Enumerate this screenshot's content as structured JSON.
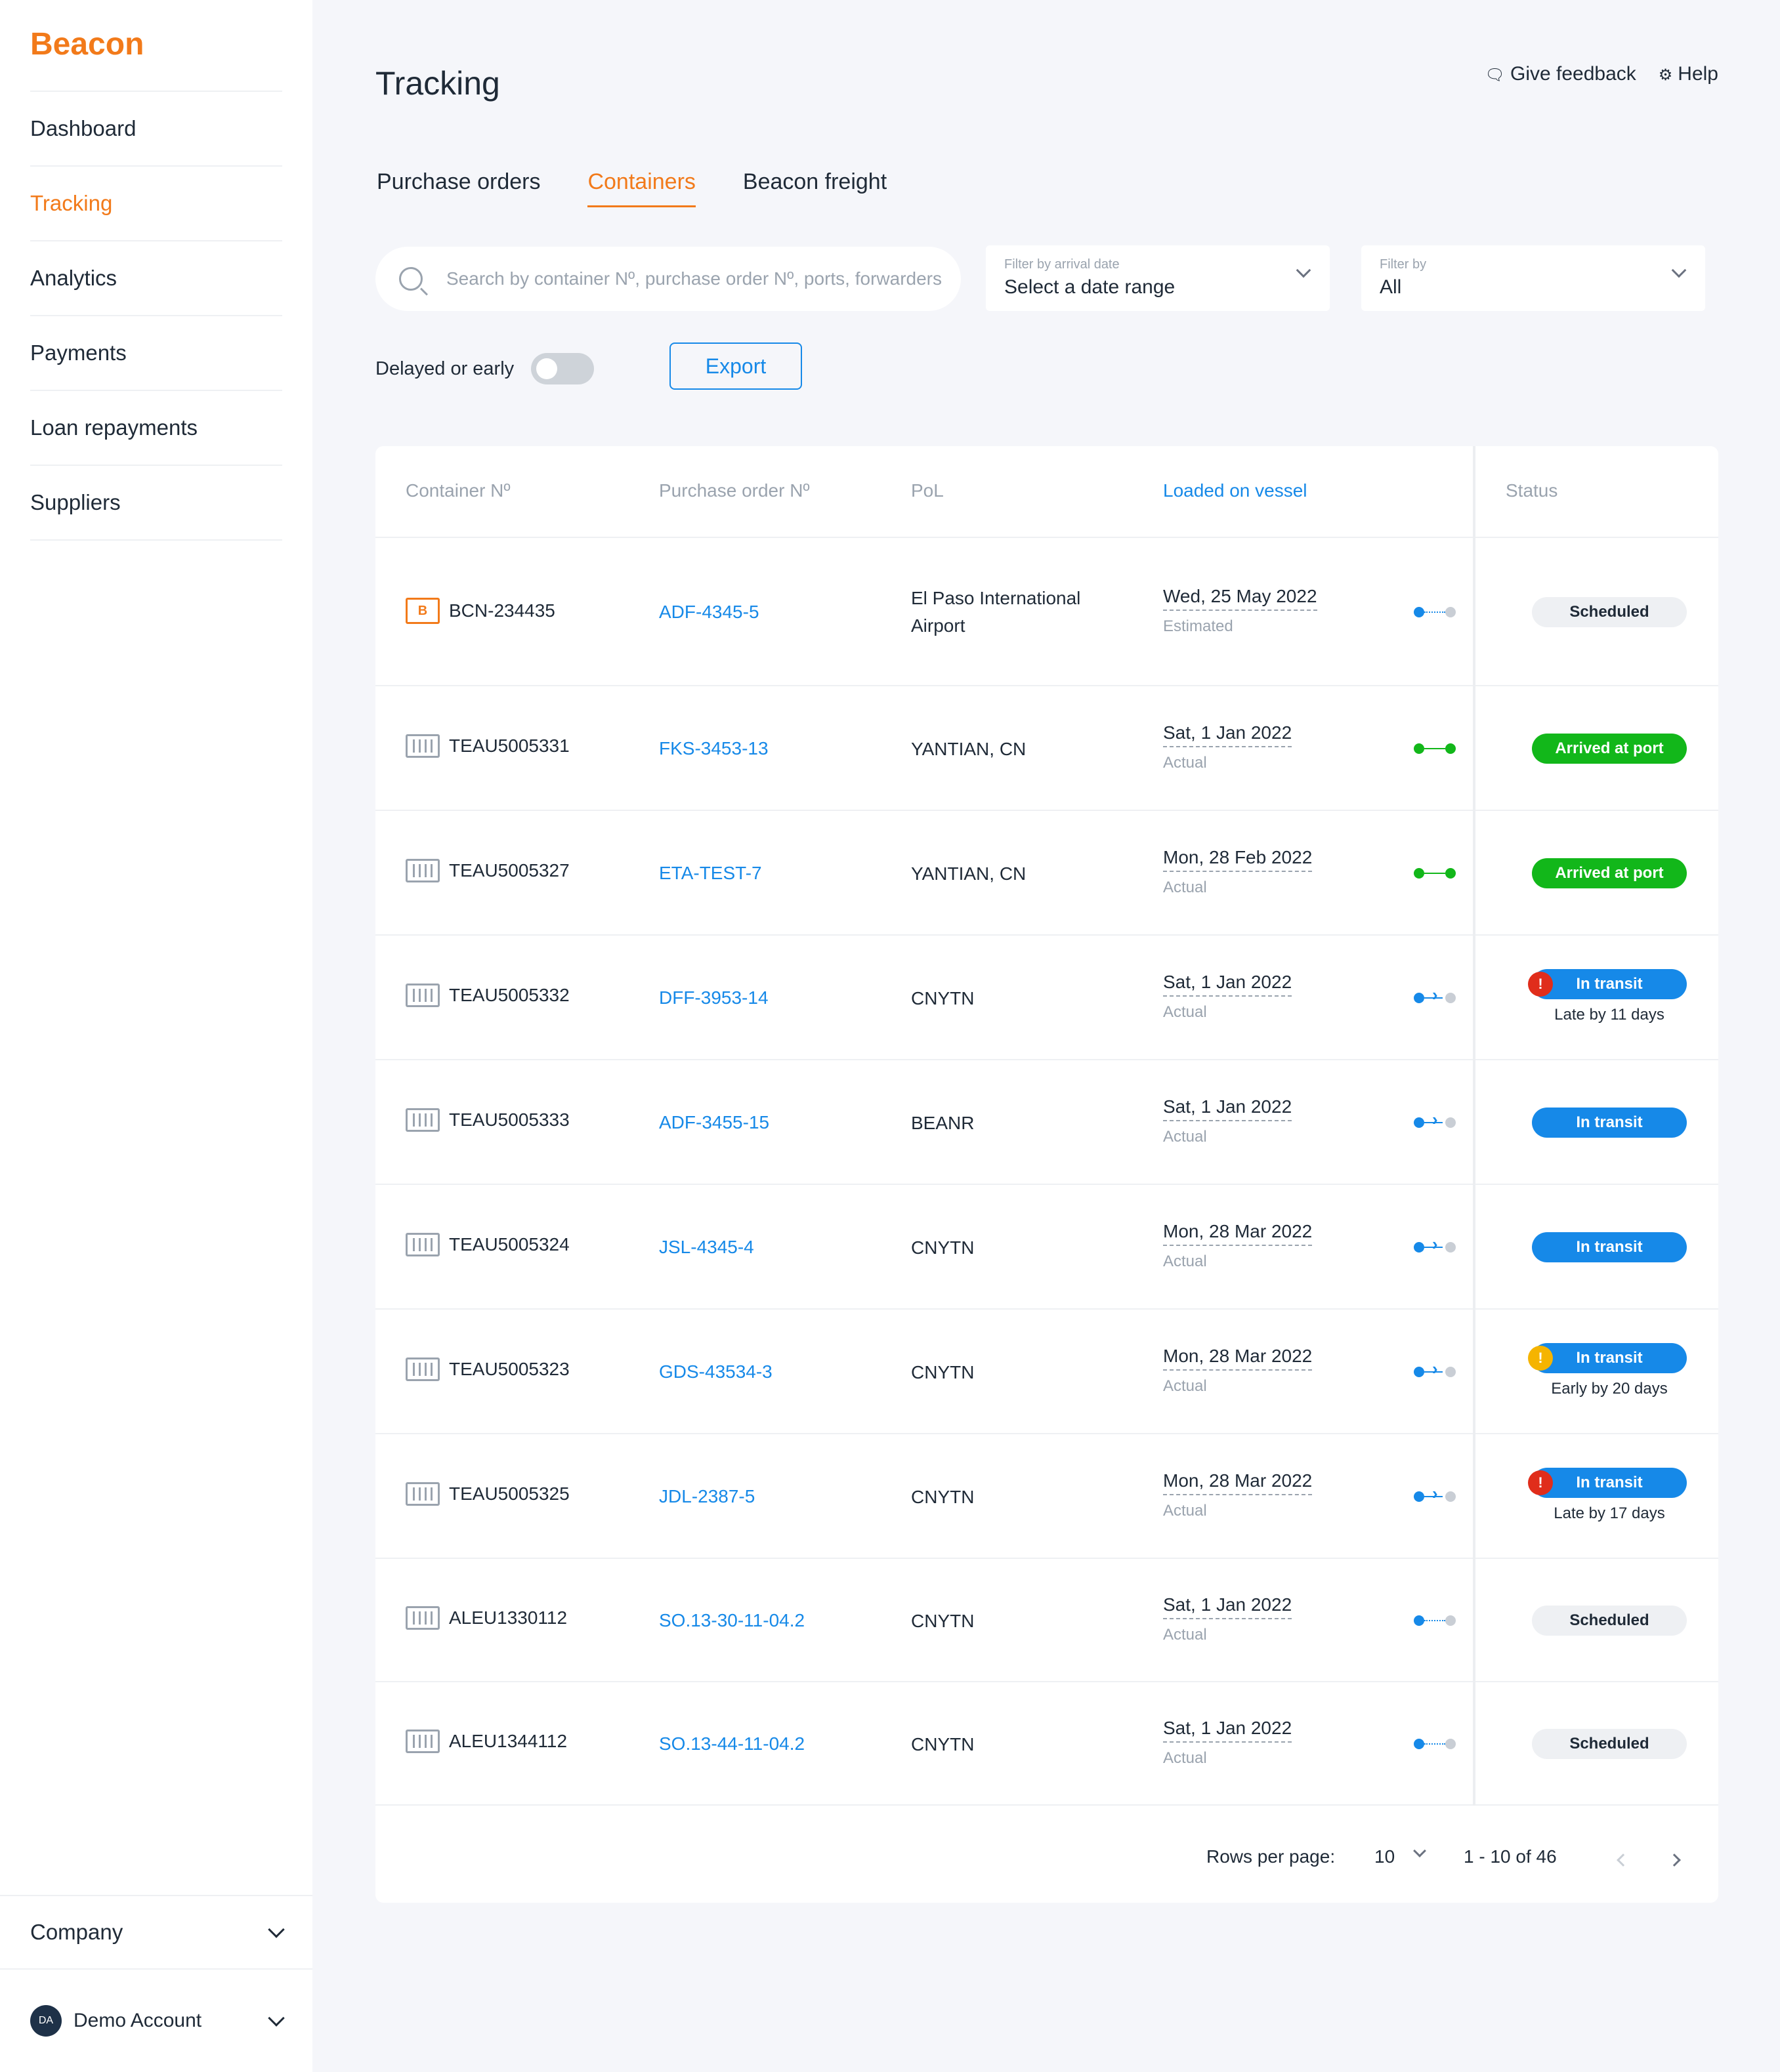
{
  "app": {
    "logo": "Beacon"
  },
  "sidebar": {
    "items": [
      {
        "label": "Dashboard"
      },
      {
        "label": "Tracking",
        "active": true
      },
      {
        "label": "Analytics"
      },
      {
        "label": "Payments"
      },
      {
        "label": "Loan repayments"
      },
      {
        "label": "Suppliers"
      }
    ],
    "company": "Company",
    "account": {
      "initials": "DA",
      "name": "Demo Account"
    }
  },
  "header": {
    "title": "Tracking",
    "feedback": "Give feedback",
    "help": "Help"
  },
  "tabs": [
    {
      "label": "Purchase orders"
    },
    {
      "label": "Containers",
      "active": true
    },
    {
      "label": "Beacon freight"
    }
  ],
  "search": {
    "placeholder": "Search by container Nº, purchase order Nº, ports, forwarders"
  },
  "filters": {
    "arrival": {
      "label": "Filter by arrival date",
      "value": "Select a date range"
    },
    "by": {
      "label": "Filter by",
      "value": "All"
    }
  },
  "delayed_toggle": {
    "label": "Delayed or early",
    "on": false
  },
  "export_label": "Export",
  "table": {
    "headers": {
      "container": "Container Nº",
      "po": "Purchase order Nº",
      "pol": "PoL",
      "loaded": "Loaded on vessel",
      "status": "Status"
    },
    "rows": [
      {
        "container": "BCN-234435",
        "po": "ADF-4345-5",
        "pol": "El Paso International Airport",
        "date": "Wed, 25 May 2022",
        "kind": "Estimated",
        "status": "Scheduled",
        "note": ""
      },
      {
        "container": "TEAU5005331",
        "po": "FKS-3453-13",
        "pol": "YANTIAN, CN",
        "date": "Sat, 1 Jan 2022",
        "kind": "Actual",
        "status": "Arrived at port",
        "note": ""
      },
      {
        "container": "TEAU5005327",
        "po": "ETA-TEST-7",
        "pol": "YANTIAN, CN",
        "date": "Mon, 28 Feb 2022",
        "kind": "Actual",
        "status": "Arrived at port",
        "note": ""
      },
      {
        "container": "TEAU5005332",
        "po": "DFF-3953-14",
        "pol": "CNYTN",
        "date": "Sat, 1 Jan 2022",
        "kind": "Actual",
        "status": "In transit",
        "note": "Late by 11 days"
      },
      {
        "container": "TEAU5005333",
        "po": "ADF-3455-15",
        "pol": "BEANR",
        "date": "Sat, 1 Jan 2022",
        "kind": "Actual",
        "status": "In transit",
        "note": ""
      },
      {
        "container": "TEAU5005324",
        "po": "JSL-4345-4",
        "pol": "CNYTN",
        "date": "Mon, 28 Mar 2022",
        "kind": "Actual",
        "status": "In transit",
        "note": ""
      },
      {
        "container": "TEAU5005323",
        "po": "GDS-43534-3",
        "pol": "CNYTN",
        "date": "Mon, 28 Mar 2022",
        "kind": "Actual",
        "status": "In transit",
        "note": "Early by 20 days"
      },
      {
        "container": "TEAU5005325",
        "po": "JDL-2387-5",
        "pol": "CNYTN",
        "date": "Mon, 28 Mar 2022",
        "kind": "Actual",
        "status": "In transit",
        "note": "Late by 17 days"
      },
      {
        "container": "ALEU1330112",
        "po": "SO.13-30-11-04.2",
        "pol": "CNYTN",
        "date": "Sat, 1 Jan 2022",
        "kind": "Actual",
        "status": "Scheduled",
        "note": ""
      },
      {
        "container": "ALEU1344112",
        "po": "SO.13-44-11-04.2",
        "pol": "CNYTN",
        "date": "Sat, 1 Jan 2022",
        "kind": "Actual",
        "status": "Scheduled",
        "note": ""
      }
    ]
  },
  "pagination": {
    "rows_label": "Rows per page:",
    "rows_value": "10",
    "range": "1 - 10 of 46"
  },
  "colors": {
    "accent": "#F27A1A",
    "link": "#1689E8",
    "arrived": "#12B71A",
    "late": "#E02D1B",
    "early": "#F5B400"
  }
}
